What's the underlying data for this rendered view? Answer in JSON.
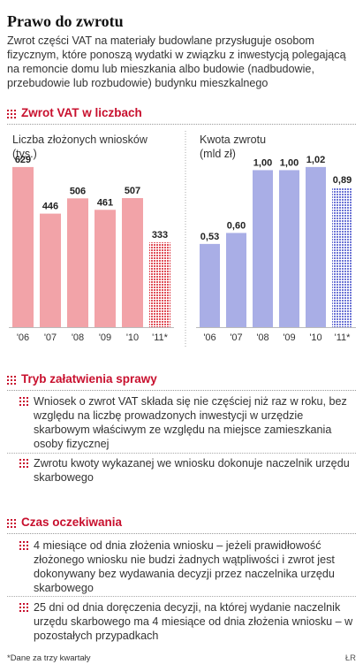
{
  "title": "Prawo do zwrotu",
  "intro": "Zwrot części VAT na materiały budowlane przysługuje osobom fizycznym, które ponoszą wydatki w związku z inwestycją polegającą na remoncie domu lub mieszkania albo budowie (nadbudowie, przebudowie lub rozbudowie) budynku mieszkalnego",
  "sections": {
    "chart_heading": "Zwrot VAT w liczbach",
    "tryb_heading": "Tryb załatwienia sprawy",
    "czas_heading": "Czas oczekiwania"
  },
  "tryb_items": [
    "Wniosek o zwrot VAT składa się nie częściej niż raz w roku, bez względu na liczbę prowadzonych inwestycji w urzędzie skarbowym właściwym ze względu na miejsce zamieszkania osoby fizycznej",
    "Zwrotu kwoty wykazanej we wniosku dokonuje naczelnik urzędu skarbowego"
  ],
  "czas_items": [
    "4 miesiące od dnia złożenia wniosku – jeżeli prawidłowość złożonego wniosku nie budzi żadnych wątpliwości i zwrot jest dokonywany bez wydawania decyzji przez naczelnika urzędu skarbowego",
    "25 dni od dnia doręczenia decyzji, na której wydanie naczelnik urzędu skarbowego ma 4 miesiące od dnia złożenia wniosku – w pozostałych przypadkach"
  ],
  "footnote": "*Dane za trzy kwartały",
  "credit": "ŁR",
  "colors": {
    "accent": "#c8102e",
    "bar_left": "#f2a3a8",
    "bar_right": "#a9aee6",
    "dot_left": "#e0505a",
    "dot_right": "#6e76d6"
  },
  "chart_data": [
    {
      "type": "bar",
      "ylabel": "Liczba złożonych wniosków\n(tys.)",
      "categories": [
        "'06",
        "'07",
        "'08",
        "'09",
        "'10",
        "'11*"
      ],
      "values": [
        629,
        446,
        506,
        461,
        507,
        333
      ],
      "value_labels": [
        "629",
        "446",
        "506",
        "461",
        "507",
        "333"
      ],
      "partial_last": true
    },
    {
      "type": "bar",
      "ylabel": "Kwota zwrotu\n(mld zł)",
      "categories": [
        "'06",
        "'07",
        "'08",
        "'09",
        "'10",
        "'11*"
      ],
      "values": [
        0.53,
        0.6,
        1.0,
        1.0,
        1.02,
        0.89
      ],
      "value_labels": [
        "0,53",
        "0,60",
        "1,00",
        "1,00",
        "1,02",
        "0,89"
      ],
      "partial_last": true
    }
  ]
}
